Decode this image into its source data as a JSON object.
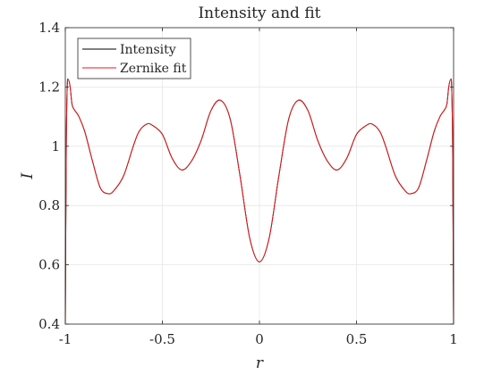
{
  "chart_data": {
    "type": "line",
    "title": "Intensity and fit",
    "xlabel": "r",
    "ylabel": "I",
    "xlim": [
      -1,
      1
    ],
    "ylim": [
      0.4,
      1.4
    ],
    "xticks": [
      -1,
      -0.5,
      0,
      0.5,
      1
    ],
    "xtick_labels": [
      "-1",
      "-0.5",
      "0",
      "0.5",
      "1"
    ],
    "yticks": [
      0.4,
      0.6,
      0.8,
      1,
      1.2,
      1.4
    ],
    "ytick_labels": [
      "0.4",
      "0.6",
      "0.8",
      "1",
      "1.2",
      "1.4"
    ],
    "grid": true,
    "legend_position": "top-left",
    "x": [
      0,
      0.05,
      0.1,
      0.15,
      0.2,
      0.25,
      0.3,
      0.35,
      0.4,
      0.45,
      0.5,
      0.55,
      0.58,
      0.62,
      0.65,
      0.7,
      0.75,
      0.78,
      0.82,
      0.86,
      0.9,
      0.93,
      0.95,
      0.965,
      0.975,
      0.985,
      0.99,
      0.995,
      1.0
    ],
    "y": [
      0.61,
      0.69,
      0.9,
      1.09,
      1.155,
      1.12,
      1.02,
      0.95,
      0.92,
      0.96,
      1.04,
      1.07,
      1.075,
      1.05,
      1.0,
      0.9,
      0.85,
      0.84,
      0.86,
      0.95,
      1.05,
      1.1,
      1.12,
      1.14,
      1.2,
      1.225,
      1.2,
      1.0,
      0.4
    ],
    "symmetric_about_zero": true,
    "series": [
      {
        "name": "Intensity",
        "color": "#000000"
      },
      {
        "name": "Zernike fit",
        "color": "#e41a1c"
      }
    ]
  }
}
